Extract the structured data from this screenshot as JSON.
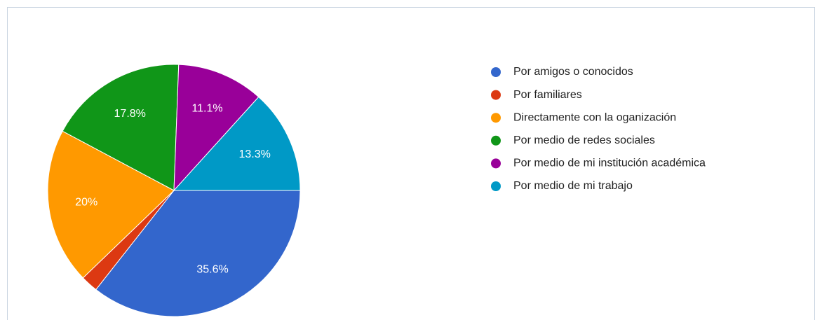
{
  "chart_data": {
    "type": "pie",
    "categories": [
      "Por amigos o conocidos",
      "Por familiares",
      "Directamente con la oganización",
      "Por medio de redes sociales",
      "Por medio de mi institución académica",
      "Por medio de mi trabajo"
    ],
    "values": [
      35.6,
      2.2,
      20,
      17.8,
      11.1,
      13.3
    ],
    "value_labels": [
      "35.6%",
      null,
      "20%",
      "17.8%",
      "11.1%",
      "13.3%"
    ],
    "colors": [
      "#3366cc",
      "#dc3912",
      "#ff9900",
      "#109618",
      "#990099",
      "#0099c6"
    ],
    "legend": "right"
  }
}
